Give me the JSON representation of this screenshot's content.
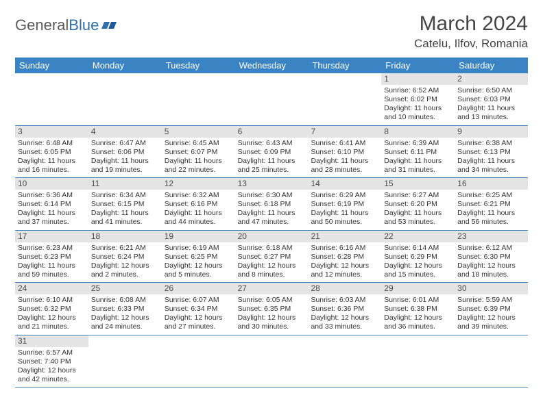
{
  "brand": {
    "part1": "General",
    "part2": "Blue"
  },
  "title": "March 2024",
  "location": "Catelu, Ilfov, Romania",
  "colors": {
    "header_bg": "#3b84c4",
    "header_text": "#ffffff",
    "daynum_bg": "#e4e4e4",
    "border": "#3b84c4",
    "text": "#333333",
    "brand_gray": "#5a5a5a",
    "brand_blue": "#2f6fb0",
    "page_bg": "#ffffff"
  },
  "typography": {
    "title_fontsize": 30,
    "location_fontsize": 17,
    "weekday_fontsize": 13,
    "daynum_fontsize": 12,
    "body_fontsize": 10.5
  },
  "weekdays": [
    "Sunday",
    "Monday",
    "Tuesday",
    "Wednesday",
    "Thursday",
    "Friday",
    "Saturday"
  ],
  "weeks": [
    [
      null,
      null,
      null,
      null,
      null,
      {
        "n": "1",
        "sr": "Sunrise: 6:52 AM",
        "ss": "Sunset: 6:02 PM",
        "d1": "Daylight: 11 hours",
        "d2": "and 10 minutes."
      },
      {
        "n": "2",
        "sr": "Sunrise: 6:50 AM",
        "ss": "Sunset: 6:03 PM",
        "d1": "Daylight: 11 hours",
        "d2": "and 13 minutes."
      }
    ],
    [
      {
        "n": "3",
        "sr": "Sunrise: 6:48 AM",
        "ss": "Sunset: 6:05 PM",
        "d1": "Daylight: 11 hours",
        "d2": "and 16 minutes."
      },
      {
        "n": "4",
        "sr": "Sunrise: 6:47 AM",
        "ss": "Sunset: 6:06 PM",
        "d1": "Daylight: 11 hours",
        "d2": "and 19 minutes."
      },
      {
        "n": "5",
        "sr": "Sunrise: 6:45 AM",
        "ss": "Sunset: 6:07 PM",
        "d1": "Daylight: 11 hours",
        "d2": "and 22 minutes."
      },
      {
        "n": "6",
        "sr": "Sunrise: 6:43 AM",
        "ss": "Sunset: 6:09 PM",
        "d1": "Daylight: 11 hours",
        "d2": "and 25 minutes."
      },
      {
        "n": "7",
        "sr": "Sunrise: 6:41 AM",
        "ss": "Sunset: 6:10 PM",
        "d1": "Daylight: 11 hours",
        "d2": "and 28 minutes."
      },
      {
        "n": "8",
        "sr": "Sunrise: 6:39 AM",
        "ss": "Sunset: 6:11 PM",
        "d1": "Daylight: 11 hours",
        "d2": "and 31 minutes."
      },
      {
        "n": "9",
        "sr": "Sunrise: 6:38 AM",
        "ss": "Sunset: 6:13 PM",
        "d1": "Daylight: 11 hours",
        "d2": "and 34 minutes."
      }
    ],
    [
      {
        "n": "10",
        "sr": "Sunrise: 6:36 AM",
        "ss": "Sunset: 6:14 PM",
        "d1": "Daylight: 11 hours",
        "d2": "and 37 minutes."
      },
      {
        "n": "11",
        "sr": "Sunrise: 6:34 AM",
        "ss": "Sunset: 6:15 PM",
        "d1": "Daylight: 11 hours",
        "d2": "and 41 minutes."
      },
      {
        "n": "12",
        "sr": "Sunrise: 6:32 AM",
        "ss": "Sunset: 6:16 PM",
        "d1": "Daylight: 11 hours",
        "d2": "and 44 minutes."
      },
      {
        "n": "13",
        "sr": "Sunrise: 6:30 AM",
        "ss": "Sunset: 6:18 PM",
        "d1": "Daylight: 11 hours",
        "d2": "and 47 minutes."
      },
      {
        "n": "14",
        "sr": "Sunrise: 6:29 AM",
        "ss": "Sunset: 6:19 PM",
        "d1": "Daylight: 11 hours",
        "d2": "and 50 minutes."
      },
      {
        "n": "15",
        "sr": "Sunrise: 6:27 AM",
        "ss": "Sunset: 6:20 PM",
        "d1": "Daylight: 11 hours",
        "d2": "and 53 minutes."
      },
      {
        "n": "16",
        "sr": "Sunrise: 6:25 AM",
        "ss": "Sunset: 6:21 PM",
        "d1": "Daylight: 11 hours",
        "d2": "and 56 minutes."
      }
    ],
    [
      {
        "n": "17",
        "sr": "Sunrise: 6:23 AM",
        "ss": "Sunset: 6:23 PM",
        "d1": "Daylight: 11 hours",
        "d2": "and 59 minutes."
      },
      {
        "n": "18",
        "sr": "Sunrise: 6:21 AM",
        "ss": "Sunset: 6:24 PM",
        "d1": "Daylight: 12 hours",
        "d2": "and 2 minutes."
      },
      {
        "n": "19",
        "sr": "Sunrise: 6:19 AM",
        "ss": "Sunset: 6:25 PM",
        "d1": "Daylight: 12 hours",
        "d2": "and 5 minutes."
      },
      {
        "n": "20",
        "sr": "Sunrise: 6:18 AM",
        "ss": "Sunset: 6:27 PM",
        "d1": "Daylight: 12 hours",
        "d2": "and 8 minutes."
      },
      {
        "n": "21",
        "sr": "Sunrise: 6:16 AM",
        "ss": "Sunset: 6:28 PM",
        "d1": "Daylight: 12 hours",
        "d2": "and 12 minutes."
      },
      {
        "n": "22",
        "sr": "Sunrise: 6:14 AM",
        "ss": "Sunset: 6:29 PM",
        "d1": "Daylight: 12 hours",
        "d2": "and 15 minutes."
      },
      {
        "n": "23",
        "sr": "Sunrise: 6:12 AM",
        "ss": "Sunset: 6:30 PM",
        "d1": "Daylight: 12 hours",
        "d2": "and 18 minutes."
      }
    ],
    [
      {
        "n": "24",
        "sr": "Sunrise: 6:10 AM",
        "ss": "Sunset: 6:32 PM",
        "d1": "Daylight: 12 hours",
        "d2": "and 21 minutes."
      },
      {
        "n": "25",
        "sr": "Sunrise: 6:08 AM",
        "ss": "Sunset: 6:33 PM",
        "d1": "Daylight: 12 hours",
        "d2": "and 24 minutes."
      },
      {
        "n": "26",
        "sr": "Sunrise: 6:07 AM",
        "ss": "Sunset: 6:34 PM",
        "d1": "Daylight: 12 hours",
        "d2": "and 27 minutes."
      },
      {
        "n": "27",
        "sr": "Sunrise: 6:05 AM",
        "ss": "Sunset: 6:35 PM",
        "d1": "Daylight: 12 hours",
        "d2": "and 30 minutes."
      },
      {
        "n": "28",
        "sr": "Sunrise: 6:03 AM",
        "ss": "Sunset: 6:36 PM",
        "d1": "Daylight: 12 hours",
        "d2": "and 33 minutes."
      },
      {
        "n": "29",
        "sr": "Sunrise: 6:01 AM",
        "ss": "Sunset: 6:38 PM",
        "d1": "Daylight: 12 hours",
        "d2": "and 36 minutes."
      },
      {
        "n": "30",
        "sr": "Sunrise: 5:59 AM",
        "ss": "Sunset: 6:39 PM",
        "d1": "Daylight: 12 hours",
        "d2": "and 39 minutes."
      }
    ],
    [
      {
        "n": "31",
        "sr": "Sunrise: 6:57 AM",
        "ss": "Sunset: 7:40 PM",
        "d1": "Daylight: 12 hours",
        "d2": "and 42 minutes."
      },
      null,
      null,
      null,
      null,
      null,
      null
    ]
  ]
}
